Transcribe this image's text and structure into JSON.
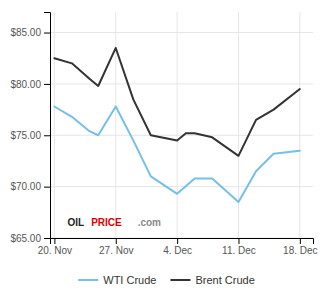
{
  "chart_data": {
    "type": "line",
    "xlim": [
      -0.5,
      29.5
    ],
    "xticks": [
      {
        "value": 0,
        "label": "20. Nov"
      },
      {
        "value": 7,
        "label": "27. Nov"
      },
      {
        "value": 14,
        "label": "4. Dec"
      },
      {
        "value": 21,
        "label": "11. Dec"
      },
      {
        "value": 28,
        "label": "18. Dec"
      }
    ],
    "ylim": [
      65.0,
      87.0
    ],
    "yticks": [
      {
        "value": 65.0,
        "label": "$65.00"
      },
      {
        "value": 70.0,
        "label": "$70.00"
      },
      {
        "value": 75.0,
        "label": "$75.00"
      },
      {
        "value": 80.0,
        "label": "$80.00"
      },
      {
        "value": 85.0,
        "label": "$85.00"
      }
    ],
    "grid": true,
    "legend": "bottom",
    "series": [
      {
        "name": "WTI Crude",
        "color": "#74c0e8",
        "x": [
          0,
          2,
          4,
          5,
          7,
          9,
          11,
          14,
          16,
          18,
          21,
          23,
          25,
          28
        ],
        "values": [
          77.8,
          76.8,
          75.4,
          75.0,
          77.8,
          74.5,
          71.0,
          69.3,
          70.8,
          70.8,
          68.5,
          71.5,
          73.2,
          73.5
        ]
      },
      {
        "name": "Brent Crude",
        "color": "#333333",
        "x": [
          0,
          2,
          4,
          5,
          7,
          9,
          11,
          14,
          15,
          16,
          18,
          21,
          23,
          25,
          28
        ],
        "values": [
          82.5,
          82.0,
          80.5,
          79.8,
          83.5,
          78.5,
          75.0,
          74.5,
          75.2,
          75.2,
          74.8,
          73.0,
          76.5,
          77.5,
          79.5
        ]
      }
    ],
    "annotations": [
      {
        "text": "OIL",
        "x": 1.5,
        "y": 66.5,
        "color": "#222222"
      },
      {
        "text": "PRICE",
        "x": 4.2,
        "y": 66.5,
        "color": "#dd0000"
      },
      {
        "text": ".com",
        "x": 9.5,
        "y": 66.5,
        "color": "#888888"
      }
    ]
  }
}
